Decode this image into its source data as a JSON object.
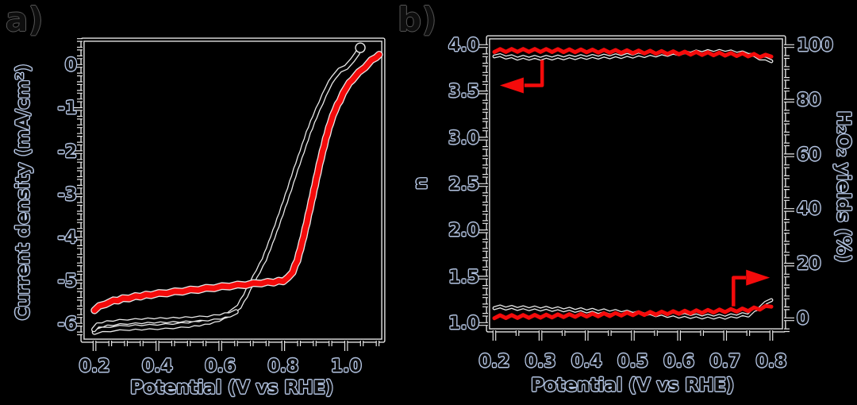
{
  "colors": {
    "background": "#000000",
    "series_black": "#000000",
    "series_red": "#f40b0b",
    "axis_line_core": "#000000",
    "axis_line_halo": "#e4e4e4",
    "curve_halo": "#e8e8e8",
    "text_fill": "#0a0a0a",
    "text_halo": "#b3c4e2"
  },
  "panel_a": {
    "label": "a)",
    "xlabel": "Potential (V vs RHE)",
    "ylabel": "Current density (mA/cm²)",
    "x_tick_labels": [
      "0.2",
      "0.4",
      "0.6",
      "0.8",
      "1.0"
    ],
    "y_tick_labels": [
      "0",
      "-1",
      "-2",
      "-3",
      "-4",
      "-5",
      "-6"
    ]
  },
  "panel_b": {
    "label": "b)",
    "xlabel": "Potential (V vs RHE)",
    "ylabel_left": "n",
    "ylabel_right": "H₂O₂ yields (%)",
    "x_tick_labels": [
      "0.2",
      "0.3",
      "0.4",
      "0.5",
      "0.6",
      "0.7",
      "0.8"
    ],
    "y_left_tick_labels": [
      "4.0",
      "3.5",
      "3.0",
      "2.5",
      "2.0",
      "1.5",
      "1.0"
    ],
    "y_right_tick_labels": [
      "100",
      "80",
      "60",
      "40",
      "20",
      "0"
    ]
  },
  "chart_data": [
    {
      "panel": "a",
      "type": "line",
      "title": "",
      "xlabel": "Potential (V vs RHE)",
      "ylabel": "Current density (mA/cm²)",
      "xlim": [
        0.162,
        1.118
      ],
      "ylim": [
        -6.37,
        0.607
      ],
      "x_ticks": [
        0.2,
        0.4,
        0.6,
        0.8,
        1.0
      ],
      "y_ticks": [
        0,
        -1,
        -2,
        -3,
        -4,
        -5,
        -6
      ],
      "x_minor_step": 0.05,
      "y_minor_step": 0.2,
      "grid": false,
      "legend": null,
      "series": [
        {
          "name": "lsv-black-forward",
          "color": "#000000",
          "halo": "#e8e8e8",
          "width": 4.2,
          "jag": 0.7,
          "axis": "left",
          "end_dot": true,
          "x": [
            0.2,
            0.225,
            0.25,
            0.28,
            0.31,
            0.35,
            0.4,
            0.45,
            0.5,
            0.55,
            0.58,
            0.61,
            0.64,
            0.66,
            0.68,
            0.7,
            0.72,
            0.74,
            0.76,
            0.78,
            0.8,
            0.82,
            0.84,
            0.86,
            0.88,
            0.9,
            0.92,
            0.94,
            0.96,
            0.98,
            1.0,
            1.02,
            1.035,
            1.045
          ],
          "y": [
            -6.16,
            -6.12,
            -6.1,
            -6.08,
            -6.07,
            -6.06,
            -6.05,
            -6.03,
            -6.0,
            -5.95,
            -5.9,
            -5.82,
            -5.7,
            -5.57,
            -5.32,
            -5.03,
            -4.76,
            -4.48,
            -4.1,
            -3.7,
            -3.28,
            -2.85,
            -2.4,
            -1.98,
            -1.55,
            -1.18,
            -0.85,
            -0.52,
            -0.26,
            -0.11,
            -0.02,
            0.12,
            0.3,
            0.42
          ]
        },
        {
          "name": "lsv-black-return",
          "color": "#000000",
          "halo": "#e8e8e8",
          "width": 4.0,
          "jag": 0.7,
          "axis": "left",
          "x": [
            0.198,
            0.21,
            0.24,
            0.28,
            0.33,
            0.39,
            0.45,
            0.51,
            0.56,
            0.6,
            0.63,
            0.65
          ],
          "y": [
            -6.1,
            -6.02,
            -5.97,
            -5.94,
            -5.92,
            -5.9,
            -5.89,
            -5.87,
            -5.85,
            -5.81,
            -5.76,
            -5.7
          ]
        },
        {
          "name": "lsv-red",
          "color": "#f40b0b",
          "halo": "#e8e8e8",
          "width": 7.0,
          "jag": 0.9,
          "axis": "left",
          "x": [
            0.2,
            0.215,
            0.235,
            0.26,
            0.29,
            0.33,
            0.38,
            0.43,
            0.48,
            0.53,
            0.58,
            0.63,
            0.68,
            0.73,
            0.77,
            0.8,
            0.815,
            0.83,
            0.845,
            0.86,
            0.875,
            0.89,
            0.905,
            0.92,
            0.935,
            0.95,
            0.965,
            0.98,
            1.0,
            1.02,
            1.04,
            1.06,
            1.08,
            1.095,
            1.105
          ],
          "y": [
            -5.65,
            -5.58,
            -5.51,
            -5.45,
            -5.4,
            -5.35,
            -5.3,
            -5.26,
            -5.22,
            -5.18,
            -5.14,
            -5.1,
            -5.07,
            -5.03,
            -5.01,
            -4.98,
            -4.92,
            -4.77,
            -4.5,
            -4.1,
            -3.63,
            -3.14,
            -2.63,
            -2.14,
            -1.7,
            -1.32,
            -1.02,
            -0.8,
            -0.5,
            -0.31,
            -0.16,
            -0.02,
            0.12,
            0.21,
            0.26
          ]
        }
      ]
    },
    {
      "panel": "b",
      "type": "line",
      "title": "",
      "xlabel": "Potential (V vs RHE)",
      "ylabel_left": "n",
      "ylabel_right": "H₂O₂ yields (%)",
      "xlim": [
        0.1863,
        0.8275
      ],
      "ylim_left": [
        0.931,
        4.094
      ],
      "ylim_right": [
        -4.07,
        103.2
      ],
      "x_ticks": [
        0.2,
        0.3,
        0.4,
        0.5,
        0.6,
        0.7,
        0.8
      ],
      "y_ticks_left": [
        4.0,
        3.5,
        3.0,
        2.5,
        2.0,
        1.5,
        1.0
      ],
      "y_ticks_right": [
        100,
        80,
        60,
        40,
        20,
        0
      ],
      "x_minor_step": 0.05,
      "y_left_minor_step": 0.1,
      "y_right_minor_step": 4,
      "grid": false,
      "legend": null,
      "series": [
        {
          "name": "n-black",
          "axis": "left",
          "color": "#000000",
          "halo": "#e8e8e8",
          "width": 2.2,
          "jag": 1.2,
          "x": [
            0.2,
            0.25,
            0.3,
            0.35,
            0.4,
            0.45,
            0.5,
            0.55,
            0.6,
            0.65,
            0.7,
            0.75,
            0.8
          ],
          "y": [
            3.898,
            3.874,
            3.873,
            3.877,
            3.882,
            3.888,
            3.896,
            3.908,
            3.922,
            3.934,
            3.938,
            3.915,
            3.836
          ]
        },
        {
          "name": "n-red",
          "axis": "left",
          "color": "#f40b0b",
          "width": 5.0,
          "jag": 1.8,
          "x": [
            0.2,
            0.25,
            0.3,
            0.35,
            0.4,
            0.45,
            0.5,
            0.55,
            0.6,
            0.65,
            0.7,
            0.75,
            0.8
          ],
          "y": [
            3.951,
            3.953,
            3.952,
            3.95,
            3.947,
            3.943,
            3.938,
            3.932,
            3.926,
            3.919,
            3.912,
            3.904,
            3.886
          ]
        },
        {
          "name": "h2o2-black",
          "axis": "right",
          "color": "#000000",
          "halo": "#e8e8e8",
          "width": 2.2,
          "jag": 1.2,
          "x": [
            0.2,
            0.25,
            0.3,
            0.35,
            0.4,
            0.45,
            0.5,
            0.55,
            0.6,
            0.65,
            0.7,
            0.75,
            0.8
          ],
          "y": [
            4.4,
            4.1,
            3.9,
            3.6,
            3.2,
            2.8,
            2.3,
            1.8,
            1.3,
            1.0,
            0.9,
            1.7,
            7.0
          ]
        },
        {
          "name": "h2o2-red",
          "axis": "right",
          "color": "#f40b0b",
          "width": 5.0,
          "jag": 1.8,
          "x": [
            0.2,
            0.25,
            0.3,
            0.35,
            0.4,
            0.45,
            0.5,
            0.55,
            0.6,
            0.65,
            0.7,
            0.75,
            0.8
          ],
          "y": [
            0.9,
            1.0,
            1.1,
            1.3,
            1.5,
            1.7,
            2.0,
            2.2,
            2.5,
            2.8,
            3.1,
            3.5,
            4.6
          ]
        }
      ],
      "arrows": [
        {
          "name": "n-axis-pointer-arrow",
          "color": "#f40b0b",
          "direction": "left",
          "line": [
            [
              0.3035,
              3.85
            ],
            [
              0.3035,
              3.575
            ],
            [
              0.265,
              3.575
            ]
          ],
          "tip": [
            0.212,
            3.575
          ]
        },
        {
          "name": "h2o2-axis-pointer-arrow",
          "color": "#f40b0b",
          "direction": "right",
          "line": [
            [
              0.718,
              1.19
            ],
            [
              0.718,
              1.5
            ],
            [
              0.745,
              1.5
            ]
          ],
          "tip": [
            0.797,
            1.5
          ]
        }
      ]
    }
  ]
}
